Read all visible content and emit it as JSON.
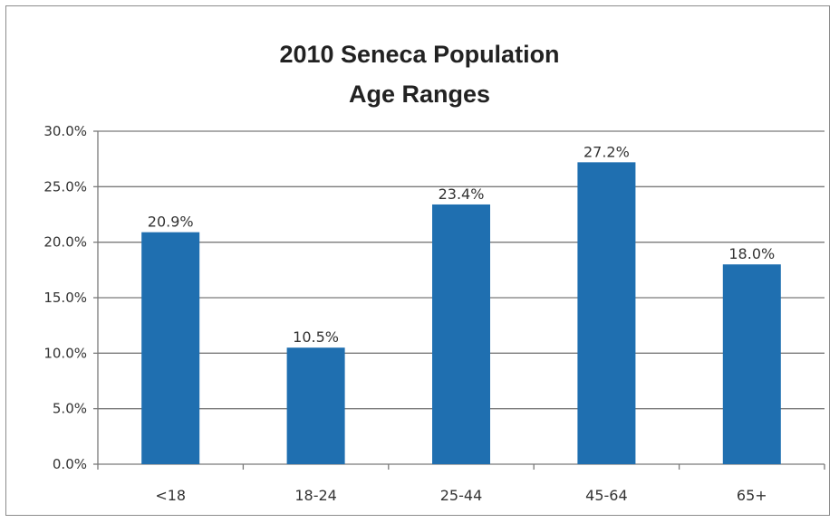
{
  "chart_data": {
    "type": "bar",
    "title_lines": [
      "2010 Seneca Population",
      "Age Ranges"
    ],
    "categories": [
      "<18",
      "18-24",
      "25-44",
      "45-64",
      "65+"
    ],
    "values": [
      20.9,
      10.5,
      23.4,
      27.2,
      18.0
    ],
    "data_labels": [
      "20.9%",
      "10.5%",
      "23.4%",
      "27.2%",
      "18.0%"
    ],
    "y_ticks": [
      "0.0%",
      "5.0%",
      "10.0%",
      "15.0%",
      "20.0%",
      "25.0%",
      "30.0%"
    ],
    "ylim": [
      0,
      30
    ],
    "y_step": 5,
    "grid": true,
    "legend": "none",
    "bar_color": "#1f6fb0"
  }
}
